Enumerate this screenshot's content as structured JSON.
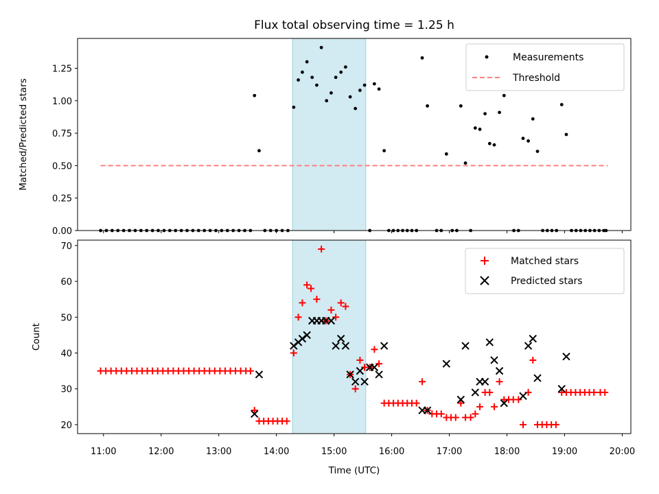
{
  "chart_data": {
    "title": "Flux total observing time = 1.25 h",
    "x_axis": {
      "label": "Time (UTC)",
      "ticks": [
        "11:00",
        "12:00",
        "13:00",
        "14:00",
        "15:00",
        "16:00",
        "17:00",
        "18:00",
        "19:00",
        "20:00"
      ],
      "tick_hours": [
        11,
        12,
        13,
        14,
        15,
        16,
        17,
        18,
        19,
        20
      ],
      "range_hours": [
        10.55,
        20.15
      ]
    },
    "highlight_span_hours": [
      14.28,
      15.55
    ],
    "colors": {
      "highlight": "#add8e6",
      "threshold": "#ff7f7f",
      "matched": "#ff0000",
      "predicted": "#000000",
      "measurements": "#000000"
    },
    "top": {
      "type": "scatter",
      "ylabel": "Matched/Predicted stars",
      "ylim": [
        0,
        1.48
      ],
      "yticks": [
        "0.00",
        "0.25",
        "0.50",
        "0.75",
        "1.00",
        "1.25"
      ],
      "ytick_values": [
        0,
        0.25,
        0.5,
        0.75,
        1.0,
        1.25
      ],
      "legend": {
        "position": "top-right",
        "entries": [
          "Measurements",
          "Threshold"
        ]
      },
      "threshold": {
        "name": "Threshold",
        "value": 0.5,
        "x_range": [
          10.95,
          19.75
        ]
      },
      "series": [
        {
          "name": "Measurements",
          "points": [
            [
              10.95,
              0
            ],
            [
              11.05,
              0
            ],
            [
              11.15,
              0
            ],
            [
              11.25,
              0
            ],
            [
              11.35,
              0
            ],
            [
              11.45,
              0
            ],
            [
              11.55,
              0
            ],
            [
              11.65,
              0
            ],
            [
              11.75,
              0
            ],
            [
              11.85,
              0
            ],
            [
              11.95,
              0
            ],
            [
              12.05,
              0
            ],
            [
              12.15,
              0
            ],
            [
              12.25,
              0
            ],
            [
              12.35,
              0
            ],
            [
              12.45,
              0
            ],
            [
              12.55,
              0
            ],
            [
              12.65,
              0
            ],
            [
              12.75,
              0
            ],
            [
              12.85,
              0
            ],
            [
              12.95,
              0
            ],
            [
              13.05,
              0
            ],
            [
              13.15,
              0
            ],
            [
              13.25,
              0
            ],
            [
              13.35,
              0
            ],
            [
              13.45,
              0
            ],
            [
              13.55,
              0
            ],
            [
              13.62,
              1.04
            ],
            [
              13.7,
              0.615
            ],
            [
              13.8,
              0
            ],
            [
              13.9,
              0
            ],
            [
              14.0,
              0
            ],
            [
              14.1,
              0
            ],
            [
              14.2,
              0
            ],
            [
              14.3,
              0.95
            ],
            [
              14.38,
              1.16
            ],
            [
              14.45,
              1.22
            ],
            [
              14.53,
              1.3
            ],
            [
              14.62,
              1.18
            ],
            [
              14.7,
              1.12
            ],
            [
              14.78,
              1.41
            ],
            [
              14.87,
              1.0
            ],
            [
              14.95,
              1.06
            ],
            [
              15.03,
              1.18
            ],
            [
              15.12,
              1.22
            ],
            [
              15.2,
              1.26
            ],
            [
              15.28,
              1.03
            ],
            [
              15.37,
              0.94
            ],
            [
              15.45,
              1.08
            ],
            [
              15.53,
              1.12
            ],
            [
              15.62,
              0
            ],
            [
              15.7,
              1.13
            ],
            [
              15.78,
              1.09
            ],
            [
              15.87,
              0.615
            ],
            [
              15.95,
              0
            ],
            [
              16.03,
              0
            ],
            [
              16.11,
              0
            ],
            [
              16.19,
              0
            ],
            [
              16.27,
              0
            ],
            [
              16.35,
              0
            ],
            [
              16.43,
              0
            ],
            [
              16.53,
              1.33
            ],
            [
              16.62,
              0.96
            ],
            [
              16.78,
              0
            ],
            [
              16.86,
              0
            ],
            [
              16.95,
              0.59
            ],
            [
              17.05,
              0
            ],
            [
              17.13,
              0
            ],
            [
              17.2,
              0.96
            ],
            [
              17.28,
              0.52
            ],
            [
              17.37,
              0
            ],
            [
              17.45,
              0.79
            ],
            [
              17.53,
              0.78
            ],
            [
              17.62,
              0.9
            ],
            [
              17.7,
              0.67
            ],
            [
              17.78,
              0.66
            ],
            [
              17.87,
              0.91
            ],
            [
              17.95,
              1.04
            ],
            [
              18.12,
              0
            ],
            [
              18.2,
              0
            ],
            [
              18.28,
              0.71
            ],
            [
              18.37,
              0.69
            ],
            [
              18.45,
              0.86
            ],
            [
              18.53,
              0.61
            ],
            [
              18.62,
              0
            ],
            [
              18.7,
              0
            ],
            [
              18.78,
              0
            ],
            [
              18.86,
              0
            ],
            [
              18.95,
              0.97
            ],
            [
              19.03,
              0.74
            ],
            [
              19.12,
              0
            ],
            [
              19.2,
              0
            ],
            [
              19.28,
              0
            ],
            [
              19.36,
              0
            ],
            [
              19.44,
              0
            ],
            [
              19.52,
              0
            ],
            [
              19.6,
              0
            ],
            [
              19.68,
              0
            ],
            [
              19.72,
              0
            ]
          ]
        }
      ]
    },
    "bottom": {
      "type": "scatter",
      "ylabel": "Count",
      "ylim": [
        17.5,
        71.5
      ],
      "yticks": [
        "20",
        "30",
        "40",
        "50",
        "60",
        "70"
      ],
      "ytick_values": [
        20,
        30,
        40,
        50,
        60,
        70
      ],
      "legend": {
        "position": "top-right",
        "entries": [
          "Matched stars",
          "Predicted stars"
        ]
      },
      "series": [
        {
          "name": "Matched stars",
          "marker": "plus",
          "points": [
            [
              10.95,
              35
            ],
            [
              11.04,
              35
            ],
            [
              11.13,
              35
            ],
            [
              11.22,
              35
            ],
            [
              11.31,
              35
            ],
            [
              11.4,
              35
            ],
            [
              11.49,
              35
            ],
            [
              11.58,
              35
            ],
            [
              11.67,
              35
            ],
            [
              11.76,
              35
            ],
            [
              11.85,
              35
            ],
            [
              11.94,
              35
            ],
            [
              12.03,
              35
            ],
            [
              12.12,
              35
            ],
            [
              12.21,
              35
            ],
            [
              12.3,
              35
            ],
            [
              12.39,
              35
            ],
            [
              12.48,
              35
            ],
            [
              12.57,
              35
            ],
            [
              12.66,
              35
            ],
            [
              12.75,
              35
            ],
            [
              12.84,
              35
            ],
            [
              12.93,
              35
            ],
            [
              13.02,
              35
            ],
            [
              13.11,
              35
            ],
            [
              13.2,
              35
            ],
            [
              13.29,
              35
            ],
            [
              13.38,
              35
            ],
            [
              13.47,
              35
            ],
            [
              13.55,
              35
            ],
            [
              13.62,
              24
            ],
            [
              13.7,
              21
            ],
            [
              13.78,
              21
            ],
            [
              13.86,
              21
            ],
            [
              13.94,
              21
            ],
            [
              14.02,
              21
            ],
            [
              14.1,
              21
            ],
            [
              14.18,
              21
            ],
            [
              14.3,
              40
            ],
            [
              14.38,
              50
            ],
            [
              14.45,
              54
            ],
            [
              14.53,
              59
            ],
            [
              14.6,
              58
            ],
            [
              14.7,
              55
            ],
            [
              14.78,
              69
            ],
            [
              14.86,
              49
            ],
            [
              14.95,
              52
            ],
            [
              15.03,
              50
            ],
            [
              15.12,
              54
            ],
            [
              15.2,
              53
            ],
            [
              15.28,
              34
            ],
            [
              15.37,
              30
            ],
            [
              15.45,
              38
            ],
            [
              15.53,
              36
            ],
            [
              15.62,
              36
            ],
            [
              15.7,
              41
            ],
            [
              15.78,
              37
            ],
            [
              15.87,
              26
            ],
            [
              15.95,
              26
            ],
            [
              16.03,
              26
            ],
            [
              16.11,
              26
            ],
            [
              16.19,
              26
            ],
            [
              16.27,
              26
            ],
            [
              16.35,
              26
            ],
            [
              16.43,
              26
            ],
            [
              16.53,
              32
            ],
            [
              16.62,
              24
            ],
            [
              16.7,
              23
            ],
            [
              16.78,
              23
            ],
            [
              16.86,
              23
            ],
            [
              16.95,
              22
            ],
            [
              17.03,
              22
            ],
            [
              17.11,
              22
            ],
            [
              17.2,
              26
            ],
            [
              17.28,
              22
            ],
            [
              17.37,
              22
            ],
            [
              17.45,
              23
            ],
            [
              17.53,
              25
            ],
            [
              17.62,
              29
            ],
            [
              17.7,
              29
            ],
            [
              17.78,
              25
            ],
            [
              17.87,
              32
            ],
            [
              17.95,
              27
            ],
            [
              18.03,
              27
            ],
            [
              18.11,
              27
            ],
            [
              18.2,
              27
            ],
            [
              18.28,
              20
            ],
            [
              18.37,
              29
            ],
            [
              18.45,
              38
            ],
            [
              18.53,
              20
            ],
            [
              18.61,
              20
            ],
            [
              18.69,
              20
            ],
            [
              18.77,
              20
            ],
            [
              18.85,
              20
            ],
            [
              18.95,
              29
            ],
            [
              19.03,
              29
            ],
            [
              19.11,
              29
            ],
            [
              19.19,
              29
            ],
            [
              19.27,
              29
            ],
            [
              19.35,
              29
            ],
            [
              19.43,
              29
            ],
            [
              19.51,
              29
            ],
            [
              19.62,
              29
            ],
            [
              19.7,
              29
            ]
          ]
        },
        {
          "name": "Predicted stars",
          "marker": "x",
          "points": [
            [
              13.62,
              23
            ],
            [
              13.7,
              34
            ],
            [
              14.3,
              42
            ],
            [
              14.38,
              43
            ],
            [
              14.45,
              44
            ],
            [
              14.53,
              45
            ],
            [
              14.62,
              49
            ],
            [
              14.7,
              49
            ],
            [
              14.78,
              49
            ],
            [
              14.86,
              49
            ],
            [
              14.95,
              49
            ],
            [
              15.03,
              42
            ],
            [
              15.12,
              44
            ],
            [
              15.2,
              42
            ],
            [
              15.28,
              34
            ],
            [
              15.37,
              32
            ],
            [
              15.45,
              35
            ],
            [
              15.53,
              32
            ],
            [
              15.62,
              36
            ],
            [
              15.7,
              36
            ],
            [
              15.78,
              34
            ],
            [
              15.87,
              42
            ],
            [
              16.53,
              24
            ],
            [
              16.62,
              24
            ],
            [
              16.95,
              37
            ],
            [
              17.2,
              27
            ],
            [
              17.28,
              42
            ],
            [
              17.45,
              29
            ],
            [
              17.53,
              32
            ],
            [
              17.62,
              32
            ],
            [
              17.7,
              43
            ],
            [
              17.78,
              38
            ],
            [
              17.87,
              35
            ],
            [
              17.95,
              26
            ],
            [
              18.28,
              28
            ],
            [
              18.37,
              42
            ],
            [
              18.45,
              44
            ],
            [
              18.53,
              33
            ],
            [
              18.95,
              30
            ],
            [
              19.03,
              39
            ]
          ]
        }
      ]
    }
  }
}
